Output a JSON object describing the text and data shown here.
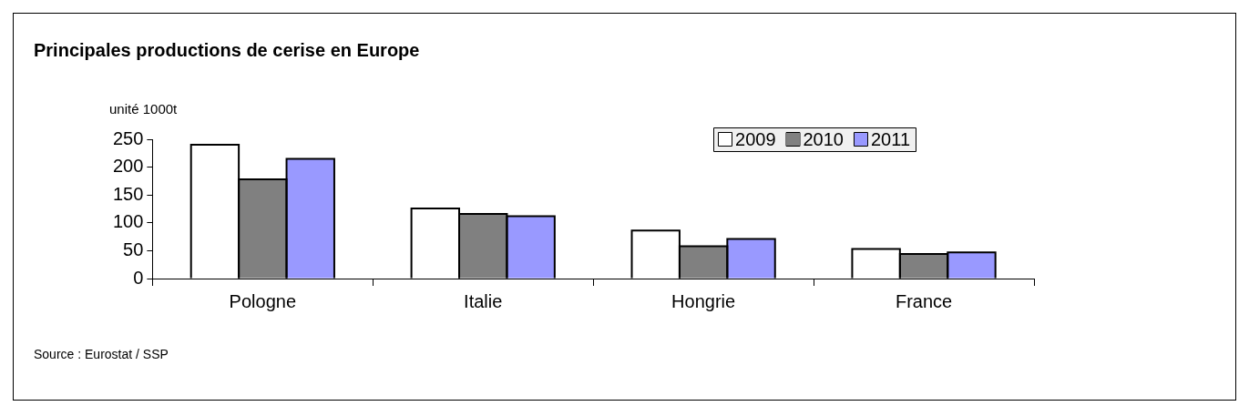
{
  "chart_data": {
    "type": "bar",
    "title": "Principales productions de cerise en Europe",
    "ylabel": "unité 1000t",
    "categories": [
      "Pologne",
      "Italie",
      "Hongrie",
      "France"
    ],
    "series": [
      {
        "name": "2009",
        "color": "#ffffff",
        "values": [
          240,
          126,
          86,
          53
        ]
      },
      {
        "name": "2010",
        "color": "#808080",
        "values": [
          178,
          116,
          58,
          44
        ]
      },
      {
        "name": "2011",
        "color": "#9999ff",
        "values": [
          215,
          112,
          71,
          47
        ]
      }
    ],
    "ylim": [
      0,
      250
    ],
    "yticks": [
      0,
      50,
      100,
      150,
      200,
      250
    ],
    "grid": false,
    "legend": "top right",
    "annotations": [
      "Source : Eurostat / SSP"
    ]
  }
}
